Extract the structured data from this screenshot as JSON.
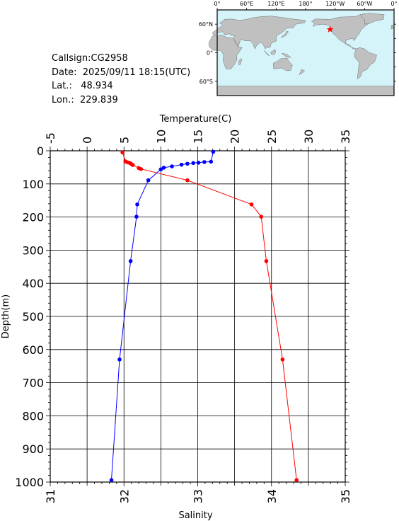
{
  "info": {
    "callsign": "Callsign:CG2958",
    "date": "Date:  2025/09/11 18:15(UTC)",
    "lat": "Lat.:   48.934",
    "lon": "Lon.:  229.839"
  },
  "map": {
    "top_labels": [
      "0°",
      "60°E",
      "120°E",
      "180°",
      "120°W",
      "60°W",
      "0°"
    ],
    "left_labels": [
      "60°N",
      "0°",
      "60°S"
    ],
    "ocean_color": "#d4f4fa",
    "land_color": "#c0c0c0",
    "marker": {
      "lon": 229.839,
      "lat": 48.934,
      "symbol": "star",
      "color": "#ff0000"
    }
  },
  "chart_data": {
    "type": "line",
    "ylabel": "Depth(m)",
    "ylim": [
      0,
      1000
    ],
    "y_ticks": [
      0,
      100,
      200,
      300,
      400,
      500,
      600,
      700,
      800,
      900,
      1000
    ],
    "top_axis": {
      "label": "Temperature(C)",
      "range": [
        -5,
        35
      ],
      "ticks": [
        -5,
        0,
        5,
        10,
        15,
        20,
        25,
        30,
        35
      ]
    },
    "bottom_axis": {
      "label": "Salinity",
      "range": [
        31,
        35
      ],
      "ticks": [
        31,
        32,
        33,
        34,
        35
      ]
    },
    "grid": true,
    "series": [
      {
        "axis": "top",
        "color": "#ff0000",
        "points": [
          [
            4.8,
            5
          ],
          [
            5.2,
            32
          ],
          [
            5.5,
            35
          ],
          [
            5.8,
            37
          ],
          [
            6.0,
            40
          ],
          [
            6.2,
            43
          ],
          [
            7.0,
            52
          ],
          [
            7.3,
            55
          ],
          [
            13.6,
            89
          ],
          [
            22.3,
            162
          ],
          [
            23.6,
            199
          ],
          [
            24.3,
            333
          ],
          [
            26.5,
            630
          ],
          [
            28.4,
            994
          ]
        ]
      },
      {
        "axis": "bottom",
        "color": "#0000ff",
        "points": [
          [
            33.21,
            3
          ],
          [
            33.18,
            33
          ],
          [
            33.09,
            34
          ],
          [
            33.01,
            36
          ],
          [
            32.94,
            37
          ],
          [
            32.86,
            39
          ],
          [
            32.78,
            42
          ],
          [
            32.65,
            47
          ],
          [
            32.54,
            51
          ],
          [
            32.5,
            56
          ],
          [
            32.33,
            89
          ],
          [
            32.18,
            162
          ],
          [
            32.17,
            199
          ],
          [
            32.09,
            333
          ],
          [
            31.94,
            630
          ],
          [
            31.83,
            994
          ]
        ]
      }
    ]
  }
}
